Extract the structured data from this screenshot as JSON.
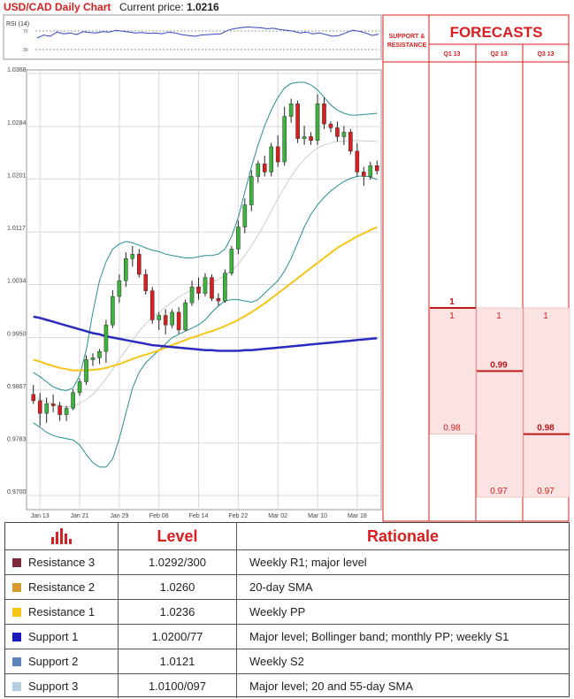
{
  "header": {
    "title": "USD/CAD Daily Chart",
    "price_label": "Current price:",
    "price_value": "1.0216"
  },
  "rsi": {
    "label": "RSI (14)",
    "levels": [
      "70",
      "30"
    ],
    "values": [
      48,
      55,
      52,
      62,
      58,
      60,
      56,
      63,
      61,
      60,
      63,
      62,
      66,
      64,
      62,
      60,
      61,
      59,
      60,
      58,
      62,
      60,
      56,
      54,
      52,
      55,
      56,
      57,
      58,
      66,
      70,
      72,
      74,
      73,
      72,
      70,
      71,
      68,
      66,
      64,
      60,
      62,
      58,
      60,
      56,
      52,
      54,
      60,
      66,
      64,
      60,
      54,
      57
    ]
  },
  "colors": {
    "bull": "#3cb43c",
    "bear": "#d81e1e",
    "bollinger": "#2a8e8e",
    "sma20": "#cccccc",
    "sma55": "#f5c518",
    "sma_long": "#2b2bbf",
    "forecast_title": "#d81e1e",
    "forecast_fill": "#fbe3e3",
    "forecast_border": "#d81e1e"
  },
  "chart_data": {
    "type": "candlestick",
    "title": "USD/CAD Daily Chart",
    "ylim": [
      0.97,
      1.0368
    ],
    "y_ticks": [
      "1.0368",
      "1.0284",
      "1.0201",
      "1.0117",
      "1.0034",
      "0.9950",
      "0.9867",
      "0.9783",
      "0.9700"
    ],
    "x_ticks": [
      "Jan 13",
      "Jan 21",
      "Jan 29",
      "Feb 06",
      "Feb 14",
      "Feb 22",
      "Mar 02",
      "Mar 10",
      "Mar 18"
    ],
    "x_tick_index": [
      1,
      7,
      13,
      19,
      25,
      31,
      37,
      43,
      49
    ],
    "candles": [
      [
        0.986,
        0.9875,
        0.9845,
        0.985
      ],
      [
        0.985,
        0.9862,
        0.981,
        0.983
      ],
      [
        0.983,
        0.9855,
        0.9815,
        0.9845
      ],
      [
        0.9845,
        0.986,
        0.9832,
        0.9842
      ],
      [
        0.9842,
        0.9848,
        0.9818,
        0.9828
      ],
      [
        0.9828,
        0.9842,
        0.9818,
        0.9838
      ],
      [
        0.9838,
        0.9868,
        0.9835,
        0.9863
      ],
      [
        0.9863,
        0.9885,
        0.9858,
        0.988
      ],
      [
        0.988,
        0.9922,
        0.9875,
        0.9915
      ],
      [
        0.9915,
        0.9925,
        0.9905,
        0.9918
      ],
      [
        0.9918,
        0.9932,
        0.9908,
        0.9928
      ],
      [
        0.9928,
        0.9978,
        0.991,
        0.997
      ],
      [
        0.997,
        1.0025,
        0.9965,
        1.0015
      ],
      [
        1.0015,
        1.005,
        1.0005,
        1.004
      ],
      [
        1.004,
        1.0085,
        1.003,
        1.0075
      ],
      [
        1.0075,
        1.0095,
        1.0062,
        1.0082
      ],
      [
        1.0082,
        1.009,
        1.0045,
        1.005
      ],
      [
        1.005,
        1.0058,
        1.0018,
        1.0024
      ],
      [
        1.0024,
        1.003,
        0.9972,
        0.9978
      ],
      [
        0.9978,
        0.999,
        0.9962,
        0.9985
      ],
      [
        0.9985,
        0.9995,
        0.9955,
        0.997
      ],
      [
        0.997,
        0.9995,
        0.9965,
        0.999
      ],
      [
        0.999,
        0.9998,
        0.9956,
        0.9962
      ],
      [
        0.9962,
        1.001,
        0.996,
        1.0005
      ],
      [
        1.0005,
        1.004,
        1.0,
        1.003
      ],
      [
        1.003,
        1.0045,
        1.001,
        1.002
      ],
      [
        1.002,
        1.0052,
        1.0015,
        1.0045
      ],
      [
        1.0045,
        1.005,
        1.0008,
        1.0012
      ],
      [
        1.0012,
        1.002,
        1.0,
        1.0008
      ],
      [
        1.0008,
        1.0058,
        1.0005,
        1.0052
      ],
      [
        1.0052,
        1.0095,
        1.0048,
        1.009
      ],
      [
        1.009,
        1.0135,
        1.0082,
        1.0125
      ],
      [
        1.0125,
        1.017,
        1.0115,
        1.016
      ],
      [
        1.016,
        1.0215,
        1.015,
        1.0205
      ],
      [
        1.0205,
        1.023,
        1.0195,
        1.0225
      ],
      [
        1.0225,
        1.0238,
        1.0205,
        1.0212
      ],
      [
        1.0212,
        1.0258,
        1.0205,
        1.0252
      ],
      [
        1.0252,
        1.027,
        1.022,
        1.0228
      ],
      [
        1.0228,
        1.0315,
        1.0222,
        1.03
      ],
      [
        1.03,
        1.0328,
        1.029,
        1.032
      ],
      [
        1.032,
        1.0325,
        1.0258,
        1.0265
      ],
      [
        1.0265,
        1.0285,
        1.0255,
        1.0268
      ],
      [
        1.0268,
        1.0275,
        1.0255,
        1.0262
      ],
      [
        1.0262,
        1.0335,
        1.0255,
        1.032
      ],
      [
        1.032,
        1.033,
        1.028,
        1.0288
      ],
      [
        1.0288,
        1.0292,
        1.0275,
        1.0282
      ],
      [
        1.0282,
        1.0292,
        1.026,
        1.0268
      ],
      [
        1.0268,
        1.0285,
        1.0255,
        1.0275
      ],
      [
        1.0275,
        1.028,
        1.024,
        1.0245
      ],
      [
        1.0245,
        1.0258,
        1.0205,
        1.0212
      ],
      [
        1.0212,
        1.022,
        1.019,
        1.0205
      ],
      [
        1.0205,
        1.0228,
        1.02,
        1.0222
      ],
      [
        1.0222,
        1.023,
        1.0208,
        1.0214
      ]
    ],
    "bb_upper": [
      0.9895,
      0.9888,
      0.988,
      0.9872,
      0.9868,
      0.9866,
      0.987,
      0.989,
      0.993,
      0.999,
      1.004,
      1.007,
      1.009,
      1.0098,
      1.0102,
      1.01,
      1.0096,
      1.0092,
      1.0088,
      1.0086,
      1.0082,
      1.008,
      1.0078,
      1.0076,
      1.0076,
      1.0078,
      1.008,
      1.008,
      1.0082,
      1.009,
      1.011,
      1.014,
      1.018,
      1.022,
      1.0255,
      1.0285,
      1.031,
      1.033,
      1.0345,
      1.0352,
      1.0354,
      1.0354,
      1.035,
      1.0342,
      1.033,
      1.0318,
      1.031,
      1.0305,
      1.0302,
      1.0302,
      1.0303,
      1.0304,
      1.0305
    ],
    "bb_lower": [
      0.9815,
      0.9808,
      0.98,
      0.9795,
      0.9792,
      0.979,
      0.9788,
      0.978,
      0.9765,
      0.9752,
      0.9745,
      0.9745,
      0.9758,
      0.979,
      0.983,
      0.987,
      0.9895,
      0.991,
      0.992,
      0.993,
      0.994,
      0.995,
      0.9955,
      0.996,
      0.9965,
      0.997,
      0.9978,
      0.999,
      1.0,
      1.0008,
      1.001,
      1.001,
      1.0008,
      1.0006,
      1.001,
      1.002,
      1.003,
      1.004,
      1.0055,
      1.0075,
      1.01,
      1.0125,
      1.0145,
      1.016,
      1.0172,
      1.0182,
      1.019,
      1.0197,
      1.0202,
      1.0205,
      1.0206,
      1.0204,
      1.02
    ],
    "sma20": [
      0.9855,
      0.9852,
      0.9848,
      0.9845,
      0.9842,
      0.984,
      0.9842,
      0.9846,
      0.9852,
      0.986,
      0.9872,
      0.9885,
      0.99,
      0.9915,
      0.993,
      0.9945,
      0.996,
      0.9972,
      0.9982,
      0.999,
      0.9998,
      1.0006,
      1.0014,
      1.002,
      1.0026,
      1.003,
      1.0034,
      1.0038,
      1.0042,
      1.0048,
      1.0056,
      1.0066,
      1.008,
      1.0095,
      1.0112,
      1.013,
      1.015,
      1.017,
      1.0188,
      1.0205,
      1.022,
      1.0232,
      1.0242,
      1.025,
      1.0255,
      1.0258,
      1.026,
      1.0261,
      1.0262,
      1.0262,
      1.0261,
      1.0261,
      1.026
    ],
    "sma55": [
      0.9915,
      0.9912,
      0.9908,
      0.9905,
      0.9902,
      0.99,
      0.9898,
      0.9898,
      0.9898,
      0.9899,
      0.99,
      0.9902,
      0.9905,
      0.9908,
      0.9912,
      0.9916,
      0.992,
      0.9923,
      0.9926,
      0.993,
      0.9934,
      0.9938,
      0.9942,
      0.9946,
      0.995,
      0.9953,
      0.9957,
      0.996,
      0.9964,
      0.9968,
      0.9973,
      0.9978,
      0.9984,
      0.999,
      0.9997,
      1.0004,
      1.0012,
      1.002,
      1.0028,
      1.0036,
      1.0044,
      1.0052,
      1.006,
      1.0068,
      1.0076,
      1.0084,
      1.0092,
      1.0098,
      1.0104,
      1.011,
      1.0115,
      1.012,
      1.0125
    ],
    "sma_long": [
      0.9983,
      0.9981,
      0.9978,
      0.9975,
      0.9972,
      0.9969,
      0.9966,
      0.9963,
      0.996,
      0.9957,
      0.9955,
      0.9952,
      0.995,
      0.9948,
      0.9946,
      0.9944,
      0.9942,
      0.994,
      0.9938,
      0.9937,
      0.9936,
      0.9935,
      0.9934,
      0.9933,
      0.9932,
      0.9931,
      0.993,
      0.993,
      0.9929,
      0.9929,
      0.9929,
      0.9929,
      0.993,
      0.993,
      0.9931,
      0.9932,
      0.9933,
      0.9934,
      0.9935,
      0.9936,
      0.9937,
      0.9938,
      0.9939,
      0.994,
      0.9941,
      0.9942,
      0.9943,
      0.9944,
      0.9945,
      0.9946,
      0.9947,
      0.9948,
      0.9949
    ],
    "levels": [
      {
        "name": "Resistance 3",
        "value": 1.0292,
        "label": "1.0292",
        "color": "#7a1f3d"
      },
      {
        "name": "Resistance 2",
        "value": 1.026,
        "label": "1.0260",
        "color": "#d8a040"
      },
      {
        "name": "Resistance 1",
        "value": 1.0236,
        "label": "1.0236",
        "color": "#f5c518"
      },
      {
        "name": "Support 1",
        "value": 1.02,
        "label": "1.0200",
        "color": "#1a1ab8"
      },
      {
        "name": "Support 2",
        "value": 1.0121,
        "label": "1.0121",
        "color": "#4a7ab0"
      },
      {
        "name": "Support 3",
        "value": 1.01,
        "label": "1.0100",
        "color": "#a8c4dc"
      }
    ]
  },
  "forecast": {
    "title": "FORECASTS",
    "sr_label_line1": "SUPPORT &",
    "sr_label_line2": "RESISTANCE",
    "columns": [
      {
        "label": "Q1 13",
        "high": 1.0,
        "low": 0.98,
        "high_label": "1",
        "low_label": "0.98",
        "mid": 1.0,
        "mid_label": "1"
      },
      {
        "label": "Q2 13",
        "high": 1.0,
        "low": 0.97,
        "high_label": "1",
        "low_label": "0.97",
        "mid": 0.99,
        "mid_label": "0.99"
      },
      {
        "label": "Q3 13",
        "high": 1.0,
        "low": 0.97,
        "high_label": "1",
        "low_label": "0.97",
        "mid": 0.98,
        "mid_label": "0.98"
      }
    ]
  },
  "table": {
    "headers": {
      "level": "Level",
      "rationale": "Rationale"
    },
    "rows": [
      {
        "name": "Resistance 3",
        "level": "1.0292/300",
        "rationale": "Weekly R1; major level",
        "color": "#7a2a3a"
      },
      {
        "name": "Resistance 2",
        "level": "1.0260",
        "rationale": "20-day SMA",
        "color": "#d89a30"
      },
      {
        "name": "Resistance 1",
        "level": "1.0236",
        "rationale": "Weekly PP",
        "color": "#f5c518"
      },
      {
        "name": "Support 1",
        "level": "1.0200/77",
        "rationale": "Major level; Bollinger band; monthly PP; weekly S1",
        "color": "#1a1ab8"
      },
      {
        "name": "Support 2",
        "level": "1.0121",
        "rationale": "Weekly S2",
        "color": "#5a84b8"
      },
      {
        "name": "Support 3",
        "level": "1.0100/097",
        "rationale": "Major level; 20 and 55-day SMA",
        "color": "#b8cce0"
      }
    ]
  }
}
